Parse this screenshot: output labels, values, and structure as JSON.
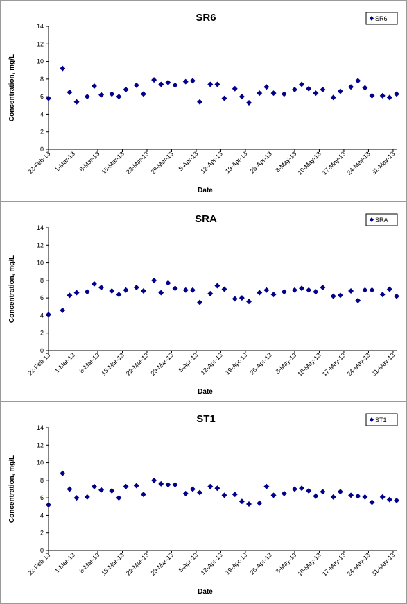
{
  "chart_data": [
    {
      "type": "scatter",
      "title": "SR6",
      "xlabel": "Date",
      "ylabel": "Concentration, mg/L",
      "ylim": [
        0,
        14
      ],
      "yticks": [
        "0",
        "2",
        "4",
        "6",
        "8",
        "10",
        "12",
        "14"
      ],
      "xlim": [
        "2013-02-22",
        "2013-06-01"
      ],
      "xticks": [
        "22-Feb-13",
        "1-Mar-13",
        "8-Mar-13",
        "15-Mar-13",
        "22-Mar-13",
        "29-Mar-13",
        "5-Apr-13",
        "12-Apr-13",
        "19-Apr-13",
        "26-Apr-13",
        "3-May-13",
        "10-May-13",
        "17-May-13",
        "24-May-13",
        "31-May-13"
      ],
      "xtick_dates": [
        "2013-02-22",
        "2013-03-01",
        "2013-03-08",
        "2013-03-15",
        "2013-03-22",
        "2013-03-29",
        "2013-04-05",
        "2013-04-12",
        "2013-04-19",
        "2013-04-26",
        "2013-05-03",
        "2013-05-10",
        "2013-05-17",
        "2013-05-24",
        "2013-05-31"
      ],
      "grid": false,
      "legend": "top-right",
      "marker_color": "#00008B",
      "series": [
        {
          "name": "SR6",
          "x": [
            "2013-02-22",
            "2013-02-26",
            "2013-02-28",
            "2013-03-02",
            "2013-03-05",
            "2013-03-07",
            "2013-03-09",
            "2013-03-12",
            "2013-03-14",
            "2013-03-16",
            "2013-03-19",
            "2013-03-21",
            "2013-03-24",
            "2013-03-26",
            "2013-03-28",
            "2013-03-30",
            "2013-04-02",
            "2013-04-04",
            "2013-04-06",
            "2013-04-09",
            "2013-04-11",
            "2013-04-13",
            "2013-04-16",
            "2013-04-18",
            "2013-04-20",
            "2013-04-23",
            "2013-04-25",
            "2013-04-27",
            "2013-04-30",
            "2013-05-03",
            "2013-05-05",
            "2013-05-07",
            "2013-05-09",
            "2013-05-11",
            "2013-05-14",
            "2013-05-16",
            "2013-05-19",
            "2013-05-21",
            "2013-05-23",
            "2013-05-25",
            "2013-05-28",
            "2013-05-30",
            "2013-06-01"
          ],
          "y": [
            5.8,
            9.2,
            6.5,
            5.4,
            6.0,
            7.2,
            6.2,
            6.3,
            6.0,
            6.8,
            7.3,
            6.3,
            7.9,
            7.4,
            7.6,
            7.3,
            7.7,
            7.8,
            5.4,
            7.4,
            7.4,
            5.8,
            6.9,
            6.0,
            5.3,
            6.4,
            7.1,
            6.4,
            6.3,
            6.8,
            7.4,
            6.9,
            6.4,
            6.8,
            5.9,
            6.6,
            7.1,
            7.8,
            7.0,
            6.1,
            6.1,
            5.9,
            6.3
          ]
        }
      ]
    },
    {
      "type": "scatter",
      "title": "SRA",
      "xlabel": "Date",
      "ylabel": "Concentration, mg/L",
      "ylim": [
        0,
        14
      ],
      "yticks": [
        "0",
        "2",
        "4",
        "6",
        "8",
        "10",
        "12",
        "14"
      ],
      "xlim": [
        "2013-02-22",
        "2013-06-01"
      ],
      "xticks": [
        "22-Feb-13",
        "1-Mar-13",
        "8-Mar-13",
        "15-Mar-13",
        "22-Mar-13",
        "29-Mar-13",
        "5-Apr-13",
        "12-Apr-13",
        "19-Apr-13",
        "26-Apr-13",
        "3-May-13",
        "10-May-13",
        "17-May-13",
        "24-May-13",
        "31-May-13"
      ],
      "xtick_dates": [
        "2013-02-22",
        "2013-03-01",
        "2013-03-08",
        "2013-03-15",
        "2013-03-22",
        "2013-03-29",
        "2013-04-05",
        "2013-04-12",
        "2013-04-19",
        "2013-04-26",
        "2013-05-03",
        "2013-05-10",
        "2013-05-17",
        "2013-05-24",
        "2013-05-31"
      ],
      "grid": false,
      "legend": "top-right",
      "marker_color": "#00008B",
      "series": [
        {
          "name": "SRA",
          "x": [
            "2013-02-22",
            "2013-02-26",
            "2013-02-28",
            "2013-03-02",
            "2013-03-05",
            "2013-03-07",
            "2013-03-09",
            "2013-03-12",
            "2013-03-14",
            "2013-03-16",
            "2013-03-19",
            "2013-03-21",
            "2013-03-24",
            "2013-03-26",
            "2013-03-28",
            "2013-03-30",
            "2013-04-02",
            "2013-04-04",
            "2013-04-06",
            "2013-04-09",
            "2013-04-11",
            "2013-04-13",
            "2013-04-16",
            "2013-04-18",
            "2013-04-20",
            "2013-04-23",
            "2013-04-25",
            "2013-04-27",
            "2013-04-30",
            "2013-05-03",
            "2013-05-05",
            "2013-05-07",
            "2013-05-09",
            "2013-05-11",
            "2013-05-14",
            "2013-05-16",
            "2013-05-19",
            "2013-05-21",
            "2013-05-23",
            "2013-05-25",
            "2013-05-28",
            "2013-05-30",
            "2013-06-01"
          ],
          "y": [
            4.1,
            4.6,
            6.3,
            6.6,
            6.7,
            7.6,
            7.2,
            6.8,
            6.4,
            6.9,
            7.2,
            6.8,
            8.0,
            6.6,
            7.7,
            7.1,
            6.9,
            6.9,
            5.5,
            6.5,
            7.4,
            7.0,
            5.9,
            6.0,
            5.6,
            6.6,
            6.9,
            6.4,
            6.7,
            6.9,
            7.1,
            6.9,
            6.7,
            7.2,
            6.2,
            6.3,
            6.8,
            5.7,
            6.9,
            6.9,
            6.4,
            7.0,
            6.2
          ]
        }
      ]
    },
    {
      "type": "scatter",
      "title": "ST1",
      "xlabel": "Date",
      "ylabel": "Concentration, mg/L",
      "ylim": [
        0,
        14
      ],
      "yticks": [
        "0",
        "2",
        "4",
        "6",
        "8",
        "10",
        "12",
        "14"
      ],
      "xlim": [
        "2013-02-22",
        "2013-06-01"
      ],
      "xticks": [
        "22-Feb-13",
        "1-Mar-13",
        "8-Mar-13",
        "15-Mar-13",
        "22-Mar-13",
        "29-Mar-13",
        "5-Apr-13",
        "12-Apr-13",
        "19-Apr-13",
        "26-Apr-13",
        "3-May-13",
        "10-May-13",
        "17-May-13",
        "24-May-13",
        "31-May-13"
      ],
      "xtick_dates": [
        "2013-02-22",
        "2013-03-01",
        "2013-03-08",
        "2013-03-15",
        "2013-03-22",
        "2013-03-29",
        "2013-04-05",
        "2013-04-12",
        "2013-04-19",
        "2013-04-26",
        "2013-05-03",
        "2013-05-10",
        "2013-05-17",
        "2013-05-24",
        "2013-05-31"
      ],
      "grid": false,
      "legend": "top-right",
      "marker_color": "#00008B",
      "series": [
        {
          "name": "ST1",
          "x": [
            "2013-02-22",
            "2013-02-26",
            "2013-02-28",
            "2013-03-02",
            "2013-03-05",
            "2013-03-07",
            "2013-03-09",
            "2013-03-12",
            "2013-03-14",
            "2013-03-16",
            "2013-03-19",
            "2013-03-21",
            "2013-03-24",
            "2013-03-26",
            "2013-03-28",
            "2013-03-30",
            "2013-04-02",
            "2013-04-04",
            "2013-04-06",
            "2013-04-09",
            "2013-04-11",
            "2013-04-13",
            "2013-04-16",
            "2013-04-18",
            "2013-04-20",
            "2013-04-23",
            "2013-04-25",
            "2013-04-27",
            "2013-04-30",
            "2013-05-03",
            "2013-05-05",
            "2013-05-07",
            "2013-05-09",
            "2013-05-11",
            "2013-05-14",
            "2013-05-16",
            "2013-05-19",
            "2013-05-21",
            "2013-05-23",
            "2013-05-25",
            "2013-05-28",
            "2013-05-30",
            "2013-06-01"
          ],
          "y": [
            5.2,
            8.8,
            7.0,
            6.0,
            6.1,
            7.3,
            6.9,
            6.8,
            6.0,
            7.3,
            7.4,
            6.4,
            8.0,
            7.6,
            7.5,
            7.5,
            6.5,
            7.0,
            6.6,
            7.3,
            7.1,
            6.3,
            6.4,
            5.6,
            5.3,
            5.4,
            7.3,
            6.3,
            6.5,
            7.0,
            7.1,
            6.8,
            6.2,
            6.7,
            6.1,
            6.7,
            6.3,
            6.2,
            6.1,
            5.5,
            6.1,
            5.8,
            5.7
          ]
        }
      ]
    }
  ]
}
